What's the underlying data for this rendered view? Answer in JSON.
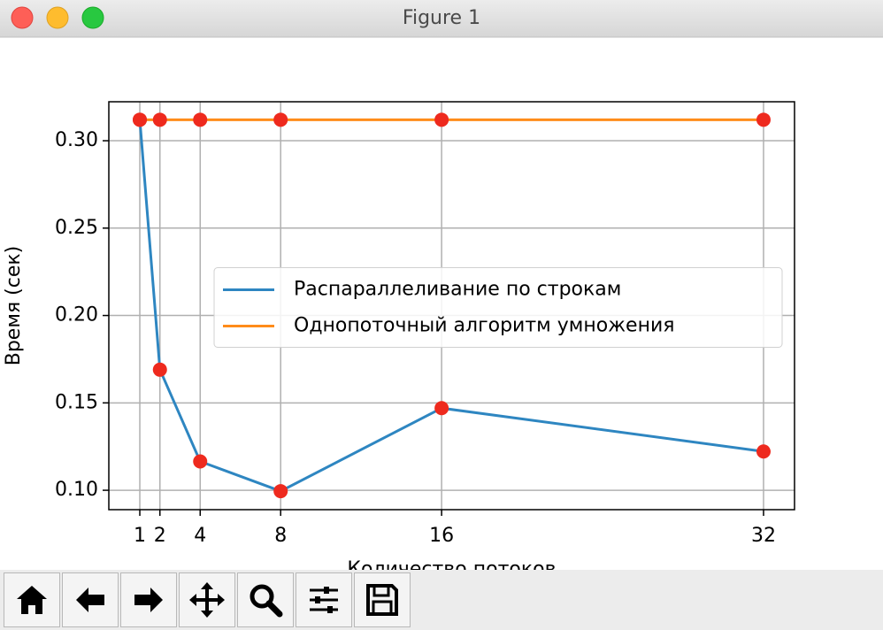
{
  "window": {
    "title": "Figure 1"
  },
  "chart_data": {
    "type": "line",
    "x": [
      1,
      2,
      4,
      8,
      16,
      32
    ],
    "series": [
      {
        "name": "Распараллеливание по строкам",
        "color": "#2e86c1",
        "values": [
          0.312,
          0.169,
          0.1165,
          0.0995,
          0.147,
          0.1222
        ]
      },
      {
        "name": "Однопоточный алгоритм умножения",
        "color": "#ff8c1a",
        "values": [
          0.312,
          0.312,
          0.312,
          0.312,
          0.312,
          0.312
        ]
      }
    ],
    "marker_color": "#ee2a1e",
    "xlim": [
      -0.54,
      33.54
    ],
    "ylim": [
      0.0889,
      0.3223
    ],
    "xticks": [
      1,
      2,
      4,
      8,
      16,
      32
    ],
    "yticks": [
      {
        "value": 0.1,
        "label": "0.10"
      },
      {
        "value": 0.15,
        "label": "0.15"
      },
      {
        "value": 0.2,
        "label": "0.20"
      },
      {
        "value": 0.25,
        "label": "0.25"
      },
      {
        "value": 0.3,
        "label": "0.30"
      }
    ],
    "xlabel": "Количество потоков",
    "ylabel": "Время (сек)",
    "grid": true,
    "legend": "center right"
  }
}
